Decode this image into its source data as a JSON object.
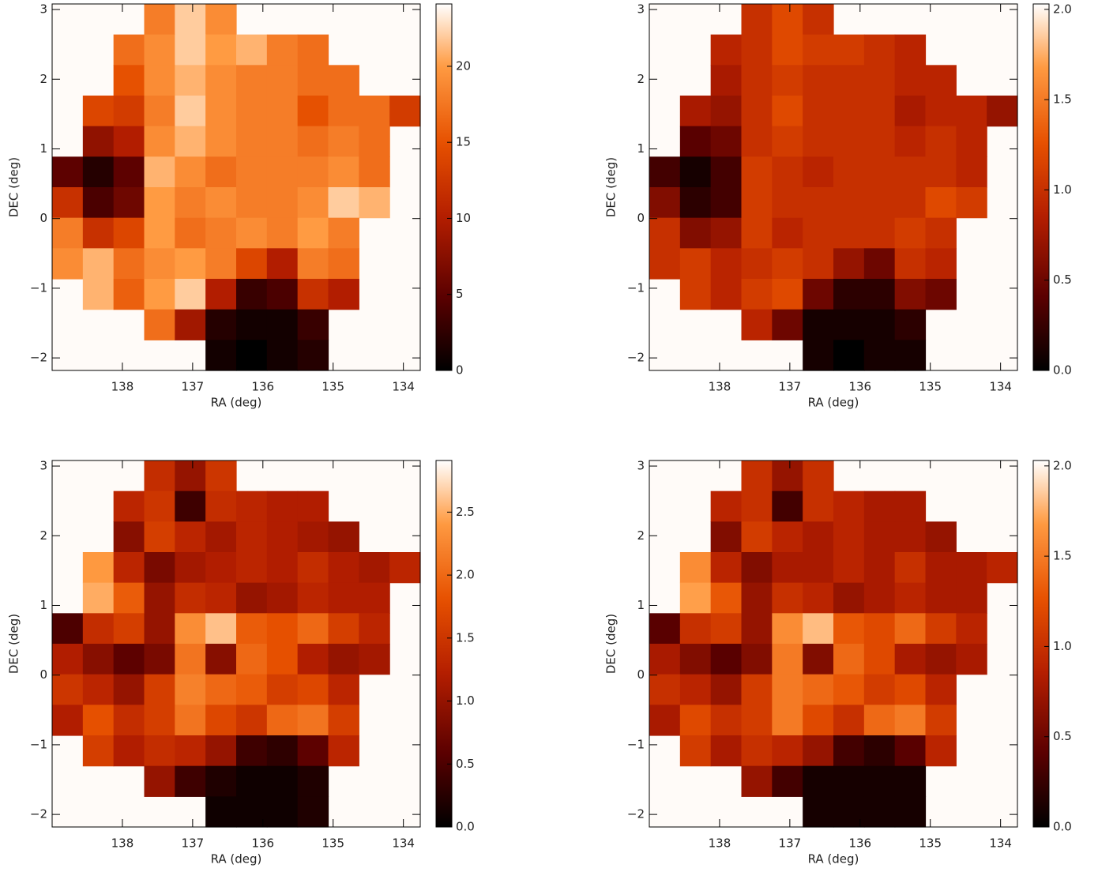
{
  "chart_data": [
    {
      "type": "heatmap",
      "x_label": "RA (deg)",
      "y_label": "DEC (deg)",
      "xlim": [
        139,
        133.76
      ],
      "xticks": [
        138,
        137,
        136,
        135,
        134
      ],
      "ylim": [
        -2.18,
        3.08
      ],
      "yticks": [
        {
          "value": -2,
          "label": "−2"
        },
        {
          "value": -1,
          "label": "−1"
        },
        0,
        1,
        2,
        3
      ],
      "zlim": [
        0,
        24.1
      ],
      "zticks": [
        0,
        5,
        10,
        15,
        20
      ],
      "colorscale": [
        [
          0,
          "#000000"
        ],
        [
          0.2,
          "#5a0000"
        ],
        [
          0.42,
          "#b41e00"
        ],
        [
          0.62,
          "#e65000"
        ],
        [
          0.83,
          "#ff9b42"
        ],
        [
          1,
          "#ffffff"
        ]
      ],
      "z": [
        [
          null,
          null,
          null,
          18,
          22,
          19,
          null,
          null,
          null,
          null,
          null,
          null
        ],
        [
          null,
          null,
          17,
          19,
          22,
          20,
          21,
          18,
          17,
          null,
          null,
          null
        ],
        [
          null,
          null,
          15,
          19,
          21,
          19,
          18,
          18,
          17,
          17,
          null,
          null
        ],
        [
          null,
          14,
          13,
          18,
          22,
          19,
          18,
          18,
          15,
          17,
          17,
          13
        ],
        [
          null,
          8,
          10,
          19,
          21,
          19,
          18,
          18,
          17,
          18,
          17,
          null
        ],
        [
          5,
          2,
          5,
          21,
          19,
          17,
          18,
          18,
          18,
          19,
          17,
          null
        ],
        [
          12,
          4,
          6,
          20,
          18,
          19,
          18,
          18,
          19,
          22,
          21,
          null
        ],
        [
          18,
          12,
          14,
          20,
          17,
          18,
          19,
          18,
          20,
          18,
          null,
          null
        ],
        [
          19,
          21,
          17,
          19,
          20,
          18,
          14,
          10,
          18,
          17,
          null,
          null
        ],
        [
          null,
          21,
          16,
          20,
          22,
          10,
          3,
          4,
          12,
          10,
          null,
          null
        ],
        [
          null,
          null,
          null,
          17,
          9,
          2,
          1,
          1,
          3,
          null,
          null,
          null
        ],
        [
          null,
          null,
          null,
          null,
          null,
          1,
          0,
          1,
          2,
          null,
          null,
          null
        ]
      ]
    },
    {
      "type": "heatmap",
      "x_label": "RA (deg)",
      "y_label": "DEC (deg)",
      "xlim": [
        139,
        133.76
      ],
      "xticks": [
        138,
        137,
        136,
        135,
        134
      ],
      "ylim": [
        -2.18,
        3.08
      ],
      "yticks": [
        {
          "value": -2,
          "label": "−2"
        },
        {
          "value": -1,
          "label": "−1"
        },
        0,
        1,
        2,
        3
      ],
      "zlim": [
        0,
        2.03
      ],
      "zticks": [
        {
          "value": 0,
          "label": "0.0"
        },
        0.5,
        {
          "value": 1,
          "label": "1.0"
        },
        1.5,
        {
          "value": 2,
          "label": "2.0"
        }
      ],
      "colorscale": [
        [
          0,
          "#000000"
        ],
        [
          0.2,
          "#5a0000"
        ],
        [
          0.42,
          "#b41e00"
        ],
        [
          0.62,
          "#e65000"
        ],
        [
          0.83,
          "#ff9b42"
        ],
        [
          1,
          "#ffffff"
        ]
      ],
      "z": [
        [
          null,
          null,
          null,
          1.0,
          1.2,
          1.0,
          null,
          null,
          null,
          null,
          null,
          null
        ],
        [
          null,
          null,
          0.9,
          1.0,
          1.2,
          1.1,
          1.1,
          1.0,
          0.9,
          null,
          null,
          null
        ],
        [
          null,
          null,
          0.8,
          1.0,
          1.1,
          1.0,
          1.0,
          1.0,
          0.9,
          0.9,
          null,
          null
        ],
        [
          null,
          0.8,
          0.7,
          1.0,
          1.2,
          1.0,
          1.0,
          1.0,
          0.8,
          0.9,
          0.9,
          0.7
        ],
        [
          null,
          0.4,
          0.5,
          1.0,
          1.1,
          1.0,
          1.0,
          1.0,
          0.9,
          1.0,
          0.9,
          null
        ],
        [
          0.3,
          0.1,
          0.3,
          1.1,
          1.0,
          0.9,
          1.0,
          1.0,
          1.0,
          1.0,
          0.9,
          null
        ],
        [
          0.6,
          0.2,
          0.3,
          1.1,
          1.0,
          1.0,
          1.0,
          1.0,
          1.0,
          1.2,
          1.1,
          null
        ],
        [
          1.0,
          0.6,
          0.7,
          1.1,
          0.9,
          1.0,
          1.0,
          1.0,
          1.1,
          1.0,
          null,
          null
        ],
        [
          1.0,
          1.1,
          0.9,
          1.0,
          1.1,
          1.0,
          0.7,
          0.5,
          1.0,
          0.9,
          null,
          null
        ],
        [
          null,
          1.1,
          0.9,
          1.1,
          1.2,
          0.5,
          0.2,
          0.2,
          0.6,
          0.5,
          null,
          null
        ],
        [
          null,
          null,
          null,
          0.9,
          0.5,
          0.1,
          0.1,
          0.1,
          0.2,
          null,
          null,
          null
        ],
        [
          null,
          null,
          null,
          null,
          null,
          0.1,
          0.0,
          0.1,
          0.1,
          null,
          null,
          null
        ]
      ]
    },
    {
      "type": "heatmap",
      "x_label": "RA (deg)",
      "y_label": "DEC (deg)",
      "xlim": [
        139,
        133.76
      ],
      "xticks": [
        138,
        137,
        136,
        135,
        134
      ],
      "ylim": [
        -2.18,
        3.08
      ],
      "yticks": [
        {
          "value": -2,
          "label": "−2"
        },
        {
          "value": -1,
          "label": "−1"
        },
        0,
        1,
        2,
        3
      ],
      "zlim": [
        0,
        2.91
      ],
      "zticks": [
        {
          "value": 0,
          "label": "0.0"
        },
        0.5,
        {
          "value": 1,
          "label": "1.0"
        },
        1.5,
        {
          "value": 2,
          "label": "2.0"
        },
        2.5
      ],
      "colorscale": [
        [
          0,
          "#000000"
        ],
        [
          0.2,
          "#5a0000"
        ],
        [
          0.42,
          "#b41e00"
        ],
        [
          0.62,
          "#e65000"
        ],
        [
          0.83,
          "#ff9b42"
        ],
        [
          1,
          "#ffffff"
        ]
      ],
      "z": [
        [
          null,
          null,
          null,
          1.4,
          1.0,
          1.5,
          null,
          null,
          null,
          null,
          null,
          null
        ],
        [
          null,
          null,
          1.3,
          1.5,
          0.4,
          1.4,
          1.3,
          1.2,
          1.2,
          null,
          null,
          null
        ],
        [
          null,
          null,
          0.9,
          1.6,
          1.3,
          1.1,
          1.3,
          1.2,
          1.1,
          1.0,
          null,
          null
        ],
        [
          null,
          2.4,
          1.3,
          0.8,
          1.1,
          1.2,
          1.3,
          1.2,
          1.4,
          1.2,
          1.1,
          1.3
        ],
        [
          null,
          2.5,
          1.9,
          1.0,
          1.4,
          1.3,
          1.0,
          1.1,
          1.3,
          1.2,
          1.2,
          null
        ],
        [
          0.5,
          1.4,
          1.6,
          1.0,
          2.3,
          2.6,
          1.9,
          1.8,
          2.0,
          1.6,
          1.3,
          null
        ],
        [
          1.2,
          0.9,
          0.6,
          0.8,
          2.1,
          0.9,
          2.0,
          1.8,
          1.2,
          1.0,
          1.1,
          null
        ],
        [
          1.5,
          1.3,
          1.0,
          1.6,
          2.2,
          2.0,
          1.9,
          1.6,
          1.7,
          1.3,
          null,
          null
        ],
        [
          1.2,
          1.8,
          1.4,
          1.6,
          2.1,
          1.7,
          1.5,
          2.0,
          2.1,
          1.6,
          null,
          null
        ],
        [
          null,
          1.6,
          1.2,
          1.4,
          1.3,
          1.0,
          0.4,
          0.3,
          0.6,
          1.3,
          null,
          null
        ],
        [
          null,
          null,
          null,
          1.0,
          0.4,
          0.2,
          0.1,
          0.1,
          0.2,
          null,
          null,
          null
        ],
        [
          null,
          null,
          null,
          null,
          null,
          0.1,
          0.1,
          0.1,
          0.2,
          null,
          null,
          null
        ]
      ]
    },
    {
      "type": "heatmap",
      "x_label": "RA (deg)",
      "y_label": "DEC (deg)",
      "xlim": [
        139,
        133.76
      ],
      "xticks": [
        138,
        137,
        136,
        135,
        134
      ],
      "ylim": [
        -2.18,
        3.08
      ],
      "yticks": [
        {
          "value": -2,
          "label": "−2"
        },
        {
          "value": -1,
          "label": "−1"
        },
        0,
        1,
        2,
        3
      ],
      "zlim": [
        0,
        2.03
      ],
      "zticks": [
        {
          "value": 0,
          "label": "0.0"
        },
        0.5,
        {
          "value": 1,
          "label": "1.0"
        },
        1.5,
        {
          "value": 2,
          "label": "2.0"
        }
      ],
      "colorscale": [
        [
          0,
          "#000000"
        ],
        [
          0.2,
          "#5a0000"
        ],
        [
          0.42,
          "#b41e00"
        ],
        [
          0.62,
          "#e65000"
        ],
        [
          0.83,
          "#ff9b42"
        ],
        [
          1,
          "#ffffff"
        ]
      ],
      "z": [
        [
          null,
          null,
          null,
          1.0,
          0.7,
          1.0,
          null,
          null,
          null,
          null,
          null,
          null
        ],
        [
          null,
          null,
          0.9,
          1.0,
          0.3,
          1.0,
          0.9,
          0.8,
          0.8,
          null,
          null,
          null
        ],
        [
          null,
          null,
          0.6,
          1.1,
          0.9,
          0.8,
          0.9,
          0.8,
          0.8,
          0.7,
          null,
          null
        ],
        [
          null,
          1.6,
          0.9,
          0.6,
          0.8,
          0.8,
          0.9,
          0.8,
          1.0,
          0.8,
          0.8,
          0.9
        ],
        [
          null,
          1.7,
          1.3,
          0.7,
          1.0,
          0.9,
          0.7,
          0.8,
          0.9,
          0.8,
          0.8,
          null
        ],
        [
          0.4,
          1.0,
          1.1,
          0.7,
          1.6,
          1.8,
          1.3,
          1.2,
          1.4,
          1.1,
          0.9,
          null
        ],
        [
          0.8,
          0.6,
          0.4,
          0.6,
          1.5,
          0.6,
          1.4,
          1.2,
          0.8,
          0.7,
          0.8,
          null
        ],
        [
          1.0,
          0.9,
          0.7,
          1.1,
          1.5,
          1.4,
          1.3,
          1.1,
          1.2,
          0.9,
          null,
          null
        ],
        [
          0.8,
          1.2,
          1.0,
          1.1,
          1.5,
          1.2,
          1.0,
          1.4,
          1.5,
          1.1,
          null,
          null
        ],
        [
          null,
          1.1,
          0.8,
          1.0,
          0.9,
          0.7,
          0.3,
          0.2,
          0.4,
          0.9,
          null,
          null
        ],
        [
          null,
          null,
          null,
          0.7,
          0.3,
          0.1,
          0.1,
          0.1,
          0.1,
          null,
          null,
          null
        ],
        [
          null,
          null,
          null,
          null,
          null,
          0.1,
          0.1,
          0.1,
          0.1,
          null,
          null,
          null
        ]
      ]
    }
  ]
}
